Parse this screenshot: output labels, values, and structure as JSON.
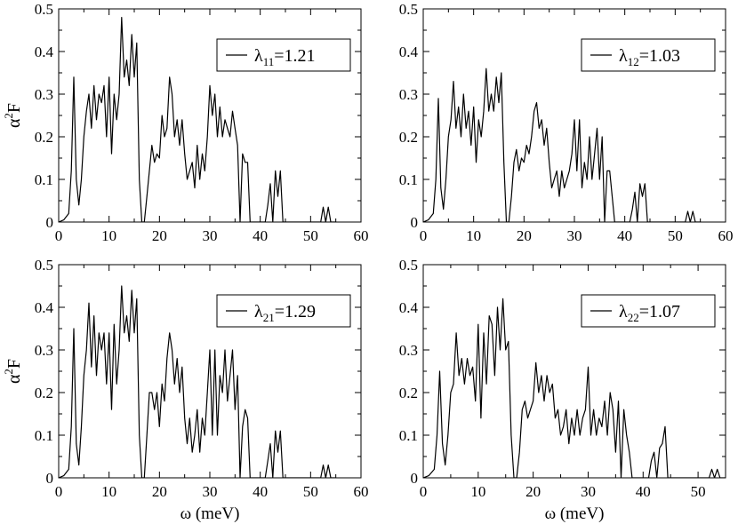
{
  "chart_data": [
    {
      "type": "line",
      "legend": {
        "symbol": "λ",
        "sub": "11",
        "value": "=1.21",
        "position": "top-right"
      },
      "ylabel": {
        "main": "α",
        "sup": "2",
        "tail": "F"
      },
      "xlabel": "",
      "xlim": [
        0,
        60
      ],
      "ylim": [
        0,
        0.5
      ],
      "xticks": [
        "0",
        "10",
        "20",
        "30",
        "40",
        "50",
        "60"
      ],
      "yticks": [
        "0",
        "0.1",
        "0.2",
        "0.3",
        "0.4",
        "0.5"
      ],
      "x": [
        0,
        1,
        2,
        2.5,
        3,
        3.5,
        4,
        4.5,
        5,
        5.5,
        6,
        6.5,
        7,
        7.5,
        8,
        8.5,
        9,
        9.5,
        10,
        10.5,
        11,
        11.5,
        12,
        12.5,
        13,
        13.5,
        14,
        14.5,
        15,
        15.5,
        16,
        16.5,
        17,
        17.5,
        18,
        18.5,
        19,
        19.5,
        20,
        20.5,
        21,
        21.5,
        22,
        22.5,
        23,
        23.5,
        24,
        24.5,
        25,
        25.5,
        26,
        26.5,
        27,
        27.5,
        28,
        28.5,
        29,
        29.5,
        30,
        30.5,
        31,
        31.5,
        32,
        32.5,
        33,
        33.5,
        34,
        34.5,
        35,
        35.5,
        36,
        36.5,
        37,
        37.5,
        38,
        38.5,
        39,
        39.5,
        40,
        40.5,
        41,
        41.5,
        42,
        42.5,
        43,
        43.5,
        44,
        44.5,
        45,
        45.5,
        46,
        50,
        51,
        51.5,
        52,
        52.5,
        53,
        53.5,
        54,
        54.5,
        55
      ],
      "y": [
        0,
        0.005,
        0.02,
        0.12,
        0.34,
        0.1,
        0.04,
        0.1,
        0.2,
        0.26,
        0.3,
        0.22,
        0.32,
        0.24,
        0.3,
        0.28,
        0.32,
        0.2,
        0.34,
        0.16,
        0.3,
        0.24,
        0.3,
        0.48,
        0.34,
        0.38,
        0.32,
        0.44,
        0.34,
        0.42,
        0.1,
        0,
        0,
        0.06,
        0.12,
        0.18,
        0.14,
        0.16,
        0.15,
        0.25,
        0.2,
        0.22,
        0.34,
        0.3,
        0.2,
        0.24,
        0.18,
        0.24,
        0.16,
        0.1,
        0.12,
        0.14,
        0.08,
        0.18,
        0.1,
        0.16,
        0.12,
        0.2,
        0.32,
        0.25,
        0.3,
        0.2,
        0.27,
        0.2,
        0.24,
        0.22,
        0.2,
        0.26,
        0.22,
        0.18,
        0,
        0.16,
        0.14,
        0.14,
        0,
        0,
        0,
        0,
        0,
        0,
        0,
        0.04,
        0.09,
        0,
        0.12,
        0.06,
        0.12,
        0,
        0,
        0,
        0,
        0,
        0,
        0,
        0,
        0.035,
        0,
        0.035,
        0,
        0,
        0
      ]
    },
    {
      "type": "line",
      "legend": {
        "symbol": "λ",
        "sub": "12",
        "value": "=1.03",
        "position": "top-right"
      },
      "ylabel": {
        "main": "",
        "sup": "",
        "tail": ""
      },
      "xlabel": "",
      "xlim": [
        0,
        60
      ],
      "ylim": [
        0,
        0.5
      ],
      "xticks": [
        "0",
        "10",
        "20",
        "30",
        "40",
        "50",
        "60"
      ],
      "yticks": [
        "0",
        "0.1",
        "0.2",
        "0.3",
        "0.4",
        "0.5"
      ],
      "x": [
        0,
        1,
        2,
        2.5,
        3,
        3.5,
        4,
        4.5,
        5,
        5.5,
        6,
        6.5,
        7,
        7.5,
        8,
        8.5,
        9,
        9.5,
        10,
        10.5,
        11,
        11.5,
        12,
        12.5,
        13,
        13.5,
        14,
        14.5,
        15,
        15.5,
        16,
        16.5,
        17,
        17.5,
        18,
        18.5,
        19,
        19.5,
        20,
        20.5,
        21,
        21.5,
        22,
        22.5,
        23,
        23.5,
        24,
        24.5,
        25,
        25.5,
        26,
        26.5,
        27,
        27.5,
        28,
        28.5,
        29,
        29.5,
        30,
        30.5,
        31,
        31.5,
        32,
        32.5,
        33,
        33.5,
        34,
        34.5,
        35,
        35.5,
        36,
        36.5,
        37,
        37.5,
        38,
        38.5,
        39,
        39.5,
        40,
        40.5,
        41,
        41.5,
        42,
        42.5,
        43,
        43.5,
        44,
        44.5,
        45,
        45.5,
        46,
        50,
        51,
        51.5,
        52,
        52.5,
        53,
        53.5,
        54,
        54.5,
        55
      ],
      "y": [
        0,
        0.005,
        0.02,
        0.1,
        0.29,
        0.08,
        0.03,
        0.1,
        0.2,
        0.24,
        0.33,
        0.22,
        0.27,
        0.2,
        0.3,
        0.22,
        0.26,
        0.18,
        0.27,
        0.14,
        0.24,
        0.2,
        0.26,
        0.36,
        0.26,
        0.3,
        0.26,
        0.34,
        0.28,
        0.35,
        0.14,
        0,
        0,
        0.06,
        0.14,
        0.17,
        0.12,
        0.15,
        0.14,
        0.18,
        0.16,
        0.2,
        0.26,
        0.28,
        0.22,
        0.24,
        0.18,
        0.22,
        0.14,
        0.08,
        0.1,
        0.12,
        0.06,
        0.12,
        0.08,
        0.1,
        0.12,
        0.16,
        0.24,
        0.12,
        0.24,
        0.08,
        0.14,
        0.1,
        0.2,
        0.1,
        0.16,
        0.22,
        0.1,
        0.2,
        0,
        0.12,
        0.12,
        0.06,
        0,
        0,
        0,
        0,
        0,
        0,
        0,
        0.03,
        0.07,
        0,
        0.09,
        0.06,
        0.09,
        0,
        0,
        0,
        0,
        0,
        0,
        0,
        0,
        0.025,
        0,
        0.025,
        0,
        0,
        0
      ]
    },
    {
      "type": "line",
      "legend": {
        "symbol": "λ",
        "sub": "21",
        "value": "=1.29",
        "position": "top-right"
      },
      "ylabel": {
        "main": "α",
        "sup": "2",
        "tail": "F"
      },
      "xlabel": "ω (meV)",
      "xlim": [
        0,
        60
      ],
      "ylim": [
        0,
        0.5
      ],
      "xticks": [
        "0",
        "10",
        "20",
        "30",
        "40",
        "50",
        "60"
      ],
      "yticks": [
        "0",
        "0.1",
        "0.2",
        "0.3",
        "0.4",
        "0.5"
      ],
      "x": [
        0,
        1,
        2,
        2.5,
        3,
        3.5,
        4,
        4.5,
        5,
        5.5,
        6,
        6.5,
        7,
        7.5,
        8,
        8.5,
        9,
        9.5,
        10,
        10.5,
        11,
        11.5,
        12,
        12.5,
        13,
        13.5,
        14,
        14.5,
        15,
        15.5,
        16,
        16.5,
        17,
        17.5,
        18,
        18.5,
        19,
        19.5,
        20,
        20.5,
        21,
        21.5,
        22,
        22.5,
        23,
        23.5,
        24,
        24.5,
        25,
        25.5,
        26,
        26.5,
        27,
        27.5,
        28,
        28.5,
        29,
        29.5,
        30,
        30.5,
        31,
        31.5,
        32,
        32.5,
        33,
        33.5,
        34,
        34.5,
        35,
        35.5,
        36,
        36.5,
        37,
        37.5,
        38,
        38.5,
        39,
        39.5,
        40,
        40.5,
        41,
        41.5,
        42,
        42.5,
        43,
        43.5,
        44,
        44.5,
        45,
        45.5,
        46,
        50,
        51,
        51.5,
        52,
        52.5,
        53,
        53.5,
        54,
        54.5,
        55
      ],
      "y": [
        0,
        0.005,
        0.02,
        0.12,
        0.35,
        0.08,
        0.03,
        0.12,
        0.24,
        0.3,
        0.41,
        0.26,
        0.38,
        0.24,
        0.34,
        0.3,
        0.34,
        0.22,
        0.34,
        0.16,
        0.36,
        0.22,
        0.3,
        0.45,
        0.34,
        0.38,
        0.32,
        0.44,
        0.34,
        0.42,
        0.1,
        0,
        0,
        0.1,
        0.2,
        0.2,
        0.16,
        0.2,
        0.12,
        0.22,
        0.18,
        0.28,
        0.34,
        0.3,
        0.22,
        0.28,
        0.2,
        0.26,
        0.14,
        0.08,
        0.14,
        0.06,
        0.1,
        0.16,
        0.06,
        0.14,
        0.1,
        0.2,
        0.3,
        0.1,
        0.3,
        0.1,
        0.24,
        0.2,
        0.3,
        0.18,
        0.24,
        0.3,
        0.16,
        0.24,
        0,
        0.12,
        0.16,
        0.14,
        0,
        0,
        0,
        0,
        0,
        0,
        0,
        0.04,
        0.08,
        0,
        0.11,
        0.06,
        0.11,
        0,
        0,
        0,
        0,
        0,
        0,
        0,
        0,
        0.03,
        0,
        0.03,
        0,
        0,
        0
      ]
    },
    {
      "type": "line",
      "legend": {
        "symbol": "λ",
        "sub": "22",
        "value": "=1.07",
        "position": "top-right"
      },
      "ylabel": {
        "main": "",
        "sup": "",
        "tail": ""
      },
      "xlabel": "ω (meV)",
      "xlim": [
        0,
        55
      ],
      "ylim": [
        0,
        0.5
      ],
      "xticks": [
        "0",
        "10",
        "20",
        "30",
        "40",
        "50"
      ],
      "yticks": [
        "0",
        "0.1",
        "0.2",
        "0.3",
        "0.4",
        "0.5"
      ],
      "x": [
        0,
        1,
        2,
        2.5,
        3,
        3.5,
        4,
        4.5,
        5,
        5.5,
        6,
        6.5,
        7,
        7.5,
        8,
        8.5,
        9,
        9.5,
        10,
        10.5,
        11,
        11.5,
        12,
        12.5,
        13,
        13.5,
        14,
        14.5,
        15,
        15.5,
        16,
        16.5,
        17,
        17.5,
        18,
        18.5,
        19,
        19.5,
        20,
        20.5,
        21,
        21.5,
        22,
        22.5,
        23,
        23.5,
        24,
        24.5,
        25,
        25.5,
        26,
        26.5,
        27,
        27.5,
        28,
        28.5,
        29,
        29.5,
        30,
        30.5,
        31,
        31.5,
        32,
        32.5,
        33,
        33.5,
        34,
        34.5,
        35,
        35.5,
        36,
        36.5,
        37,
        37.5,
        38,
        38.5,
        39,
        39.5,
        40,
        40.5,
        41,
        41.5,
        42,
        42.5,
        43,
        43.5,
        44,
        44.5,
        45,
        45.5,
        46,
        50,
        51,
        51.5,
        52,
        52.5,
        53,
        53.5,
        54,
        54.5,
        55
      ],
      "y": [
        0,
        0.005,
        0.02,
        0.1,
        0.25,
        0.08,
        0.03,
        0.1,
        0.2,
        0.22,
        0.34,
        0.24,
        0.28,
        0.22,
        0.28,
        0.24,
        0.26,
        0.18,
        0.36,
        0.14,
        0.34,
        0.22,
        0.38,
        0.36,
        0.24,
        0.4,
        0.3,
        0.42,
        0.3,
        0.32,
        0.1,
        0,
        0,
        0.06,
        0.16,
        0.18,
        0.14,
        0.16,
        0.18,
        0.27,
        0.2,
        0.24,
        0.18,
        0.24,
        0.2,
        0.22,
        0.14,
        0.16,
        0.1,
        0.12,
        0.16,
        0.08,
        0.14,
        0.1,
        0.16,
        0.1,
        0.14,
        0.16,
        0.26,
        0.1,
        0.16,
        0.1,
        0.14,
        0.12,
        0.18,
        0.1,
        0.2,
        0.16,
        0.06,
        0.18,
        0,
        0.16,
        0.1,
        0.06,
        0,
        0,
        0,
        0,
        0,
        0,
        0,
        0.04,
        0.06,
        0,
        0.07,
        0.08,
        0.12,
        0,
        0,
        0,
        0,
        0,
        0,
        0,
        0,
        0.02,
        0,
        0.02,
        0,
        0,
        0
      ]
    }
  ]
}
